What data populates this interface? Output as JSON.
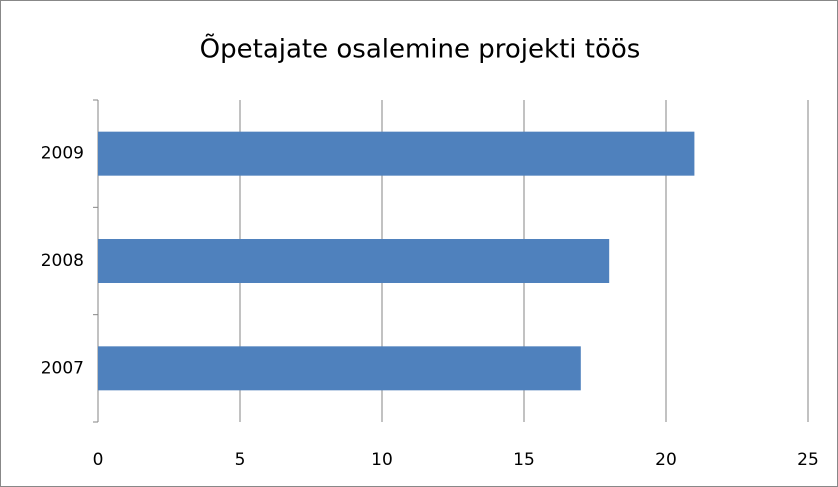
{
  "chart_data": {
    "type": "barh",
    "title": "Õpetajate osalemine projekti töös",
    "categories": [
      "2007",
      "2008",
      "2009"
    ],
    "values": [
      17,
      18,
      21
    ],
    "color": "#4f81bd",
    "xlim": [
      0,
      25
    ],
    "xticks": [
      0,
      5,
      10,
      15,
      20,
      25
    ],
    "grid": true
  }
}
